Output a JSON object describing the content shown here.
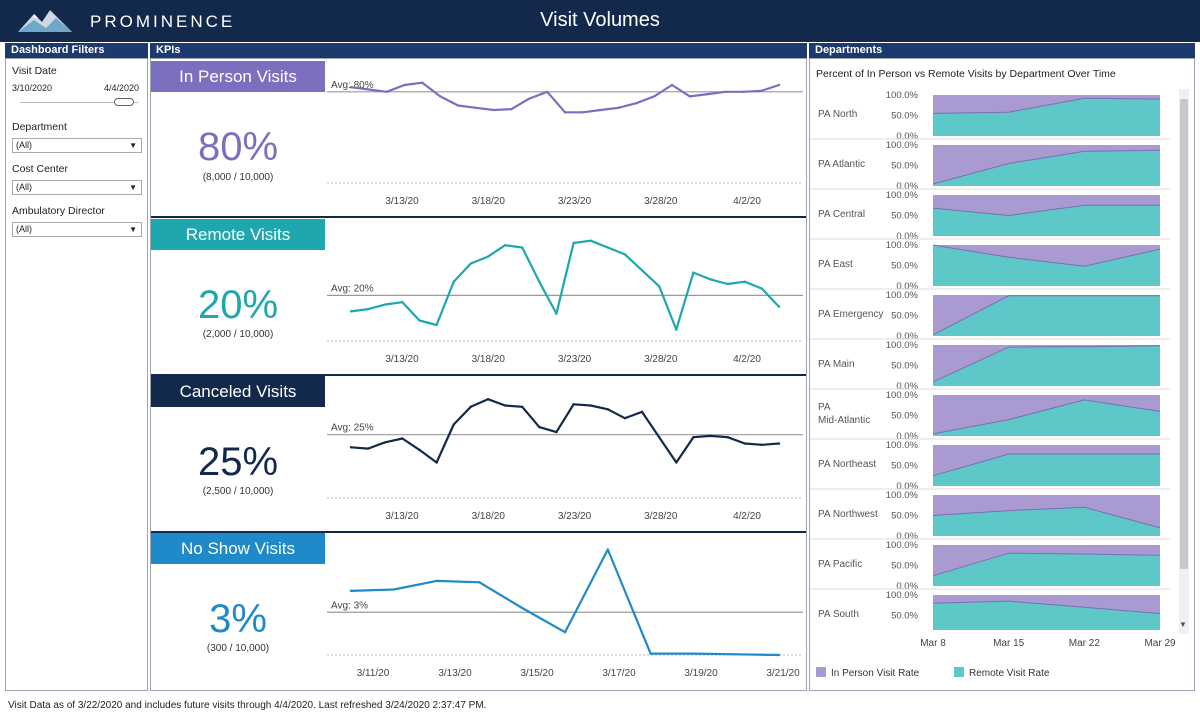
{
  "header": {
    "brand": "PROMINENCE",
    "title": "Visit Volumes"
  },
  "sections": {
    "filters": "Dashboard Filters",
    "kpis": "KPIs",
    "departments": "Departments"
  },
  "filters": {
    "visit_date_label": "Visit Date",
    "date_start": "3/10/2020",
    "date_end": "4/4/2020",
    "department_label": "Department",
    "department_value": "(All)",
    "cost_center_label": "Cost Center",
    "cost_center_value": "(All)",
    "director_label": "Ambulatory Director",
    "director_value": "(All)"
  },
  "kpis": [
    {
      "title": "In Person Visits",
      "value": "80%",
      "sub": "(8,000 / 10,000)",
      "avg_label": "Avg: 80%",
      "color": "#7b6fbf",
      "title_bg": "#7b6fbf"
    },
    {
      "title": "Remote Visits",
      "value": "20%",
      "sub": "(2,000 / 10,000)",
      "avg_label": "Avg: 20%",
      "color": "#1ea7ad",
      "title_bg": "#1ea7ad"
    },
    {
      "title": "Canceled Visits",
      "value": "25%",
      "sub": "(2,500 / 10,000)",
      "avg_label": "Avg: 25%",
      "color": "#13294b",
      "title_bg": "#13294b"
    },
    {
      "title": "No Show Visits",
      "value": "3%",
      "sub": "(300 / 10,000)",
      "avg_label": "Avg: 3%",
      "color": "#1f8ac9",
      "title_bg": "#1f8ac9"
    }
  ],
  "chart_data": [
    {
      "type": "line",
      "x_ticks": [
        "3/13/20",
        "3/18/20",
        "3/23/20",
        "3/28/20",
        "4/2/20"
      ],
      "values": [
        81,
        80.5,
        80,
        81.5,
        82,
        79,
        77,
        76.5,
        76,
        76.2,
        78.5,
        80,
        75.5,
        75.5,
        76,
        76.5,
        77.5,
        79,
        81.5,
        79,
        79.5,
        80,
        80,
        80.2,
        81.5
      ],
      "avg": 80,
      "ylim": [
        60,
        85
      ]
    },
    {
      "type": "line",
      "x_ticks": [
        "3/13/20",
        "3/18/20",
        "3/23/20",
        "3/28/20",
        "4/2/20"
      ],
      "values": [
        13,
        14,
        16,
        17,
        9,
        7,
        26,
        34,
        37,
        42,
        41,
        26,
        12,
        43,
        44,
        41,
        38,
        31,
        24,
        5,
        30,
        27,
        25,
        26,
        23,
        15
      ],
      "avg": 20,
      "ylim": [
        0,
        50
      ]
    },
    {
      "type": "line",
      "x_ticks": [
        "3/13/20",
        "3/18/20",
        "3/23/20",
        "3/28/20",
        "4/2/20"
      ],
      "values": [
        20,
        19.5,
        22,
        23.5,
        19,
        14,
        29,
        36,
        39,
        36.5,
        36,
        28,
        26,
        37,
        36.5,
        35,
        31.5,
        34,
        24,
        14,
        24,
        24.5,
        24,
        21.5,
        21,
        21.5
      ],
      "avg": 25,
      "ylim": [
        0,
        45
      ]
    },
    {
      "type": "line",
      "x_ticks": [
        "3/11/20",
        "3/13/20",
        "3/15/20",
        "3/17/20",
        "3/19/20",
        "3/21/20"
      ],
      "values": [
        4.5,
        4.6,
        5.2,
        5.1,
        3.3,
        1.6,
        7.4,
        0.1,
        0.1,
        0.05,
        0
      ],
      "avg": 3,
      "ylim": [
        0,
        8
      ]
    },
    {
      "type": "area",
      "title": "Percent of In Person vs Remote Visits by Department Over Time",
      "x_ticks": [
        "Mar 8",
        "Mar 15",
        "Mar 22",
        "Mar 29"
      ],
      "y_ticks": [
        "100.0%",
        "50.0%",
        "0.0%"
      ],
      "legend": [
        {
          "name": "In Person Visit Rate",
          "color": "#a99bd1"
        },
        {
          "name": "Remote Visit Rate",
          "color": "#5ec8c8"
        }
      ],
      "departments": [
        {
          "name": "PA North",
          "remote": [
            55,
            58,
            92,
            90
          ]
        },
        {
          "name": "PA Atlantic",
          "remote": [
            5,
            55,
            85,
            87
          ]
        },
        {
          "name": "PA Central",
          "remote": [
            68,
            50,
            75,
            75
          ]
        },
        {
          "name": "PA East",
          "remote": [
            100,
            70,
            48,
            90
          ]
        },
        {
          "name": "PA Emergency",
          "remote": [
            3,
            98,
            98,
            98
          ]
        },
        {
          "name": "PA Main",
          "remote": [
            10,
            95,
            96,
            98
          ]
        },
        {
          "name": "PA Mid-Atlantic",
          "remote": [
            5,
            40,
            88,
            60
          ]
        },
        {
          "name": "PA Northeast",
          "remote": [
            25,
            78,
            78,
            78
          ]
        },
        {
          "name": "PA Northwest",
          "remote": [
            50,
            62,
            70,
            20
          ]
        },
        {
          "name": "PA Pacific",
          "remote": [
            25,
            80,
            78,
            75
          ]
        },
        {
          "name": "PA South",
          "remote": [
            80,
            85,
            70,
            55
          ]
        }
      ]
    }
  ],
  "footer": "Visit Data as of 3/22/2020 and includes future visits through 4/4/2020. Last refreshed 3/24/2020 2:37:47 PM."
}
